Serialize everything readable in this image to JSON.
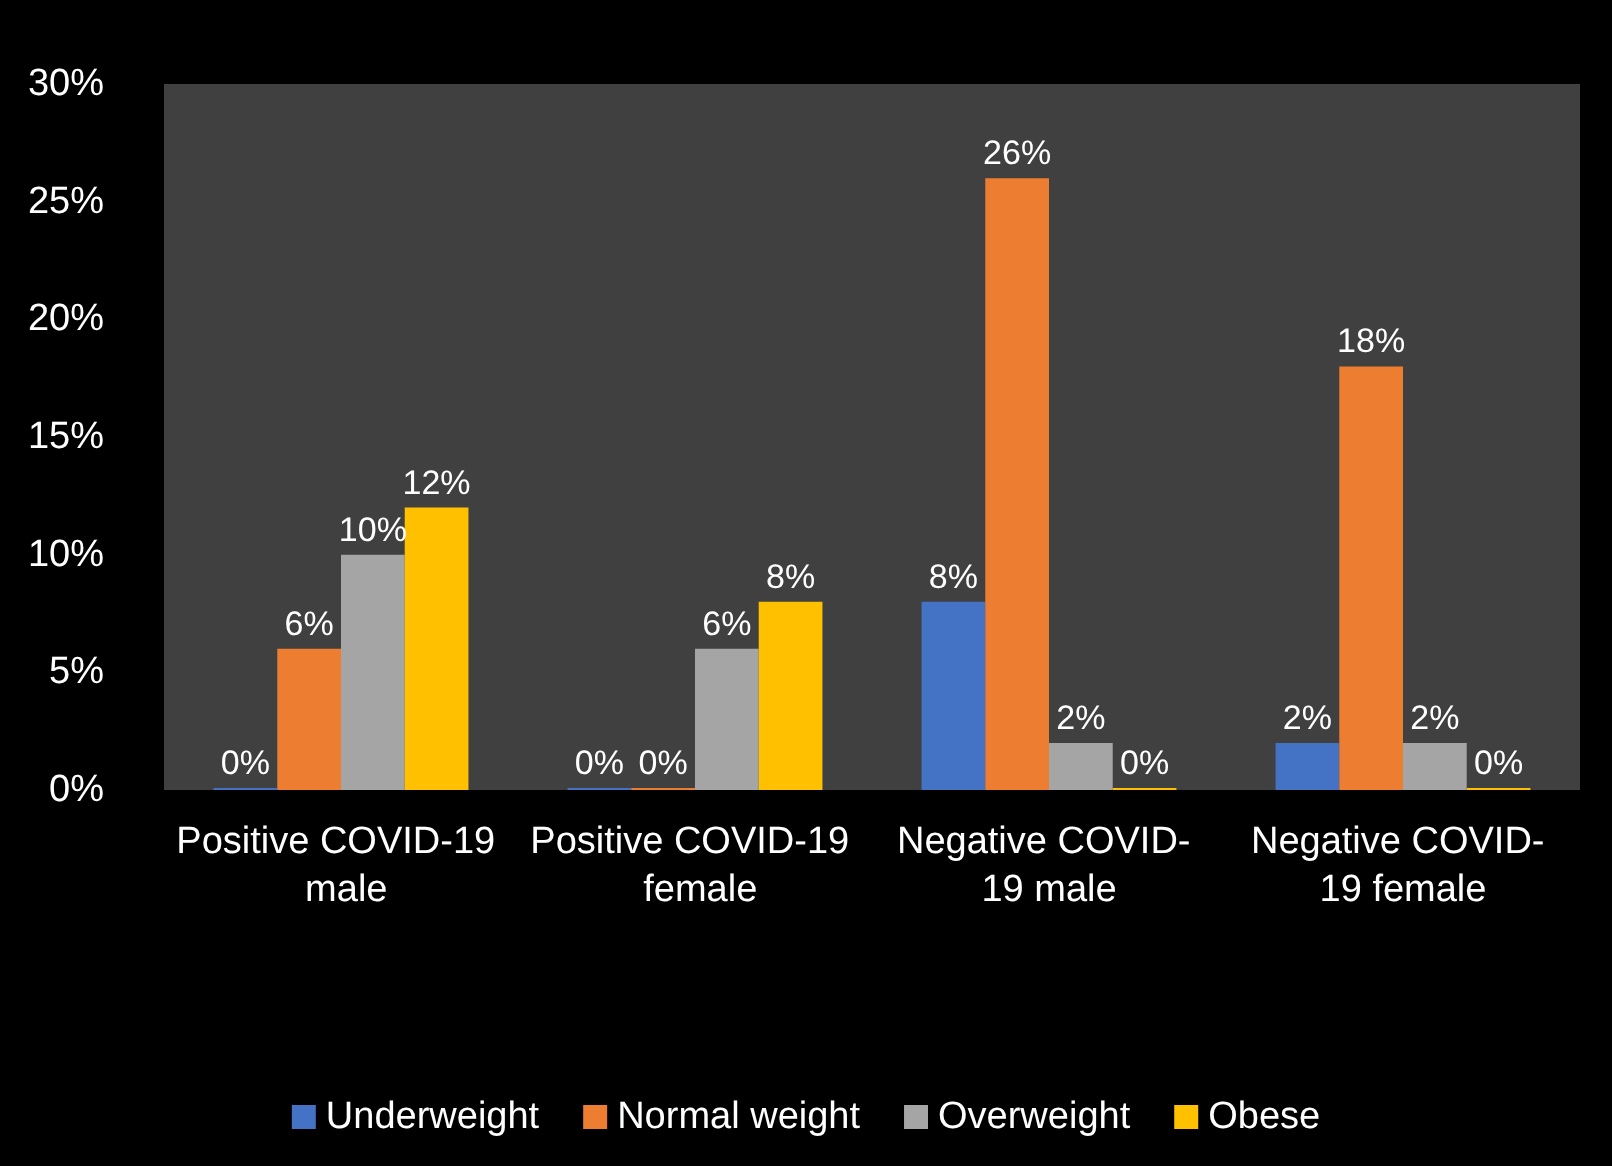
{
  "chart_data": {
    "type": "bar",
    "categories": [
      "Positive COVID-19  male",
      "Positive COVID-19  female",
      "Negative COVID- 19 male",
      "Negative COVID- 19 female"
    ],
    "series": [
      {
        "name": "Underweight",
        "color": "#4472c4",
        "values": [
          0,
          0,
          8,
          2
        ],
        "value_labels": [
          "0%",
          "0%",
          "8%",
          "2%"
        ]
      },
      {
        "name": "Normal weight",
        "color": "#ed7d31",
        "values": [
          6,
          0,
          26,
          18
        ],
        "value_labels": [
          "6%",
          "0%",
          "26%",
          "18%"
        ]
      },
      {
        "name": "Overweight",
        "color": "#a5a5a5",
        "values": [
          10,
          6,
          2,
          2
        ],
        "value_labels": [
          "10%",
          "6%",
          "2%",
          "2%"
        ]
      },
      {
        "name": "Obese",
        "color": "#ffc000",
        "values": [
          12,
          8,
          0,
          0
        ],
        "value_labels": [
          "12%",
          "8%",
          "0%",
          "0%"
        ]
      }
    ],
    "ylim": [
      0,
      30
    ],
    "yticks": [
      {
        "value": 0,
        "label": "0%"
      },
      {
        "value": 5,
        "label": "5%"
      },
      {
        "value": 10,
        "label": "10%"
      },
      {
        "value": 15,
        "label": "15%"
      },
      {
        "value": 20,
        "label": "20%"
      },
      {
        "value": 25,
        "label": "25%"
      },
      {
        "value": 30,
        "label": "30%"
      }
    ],
    "grid": false,
    "legend": "bottom"
  }
}
